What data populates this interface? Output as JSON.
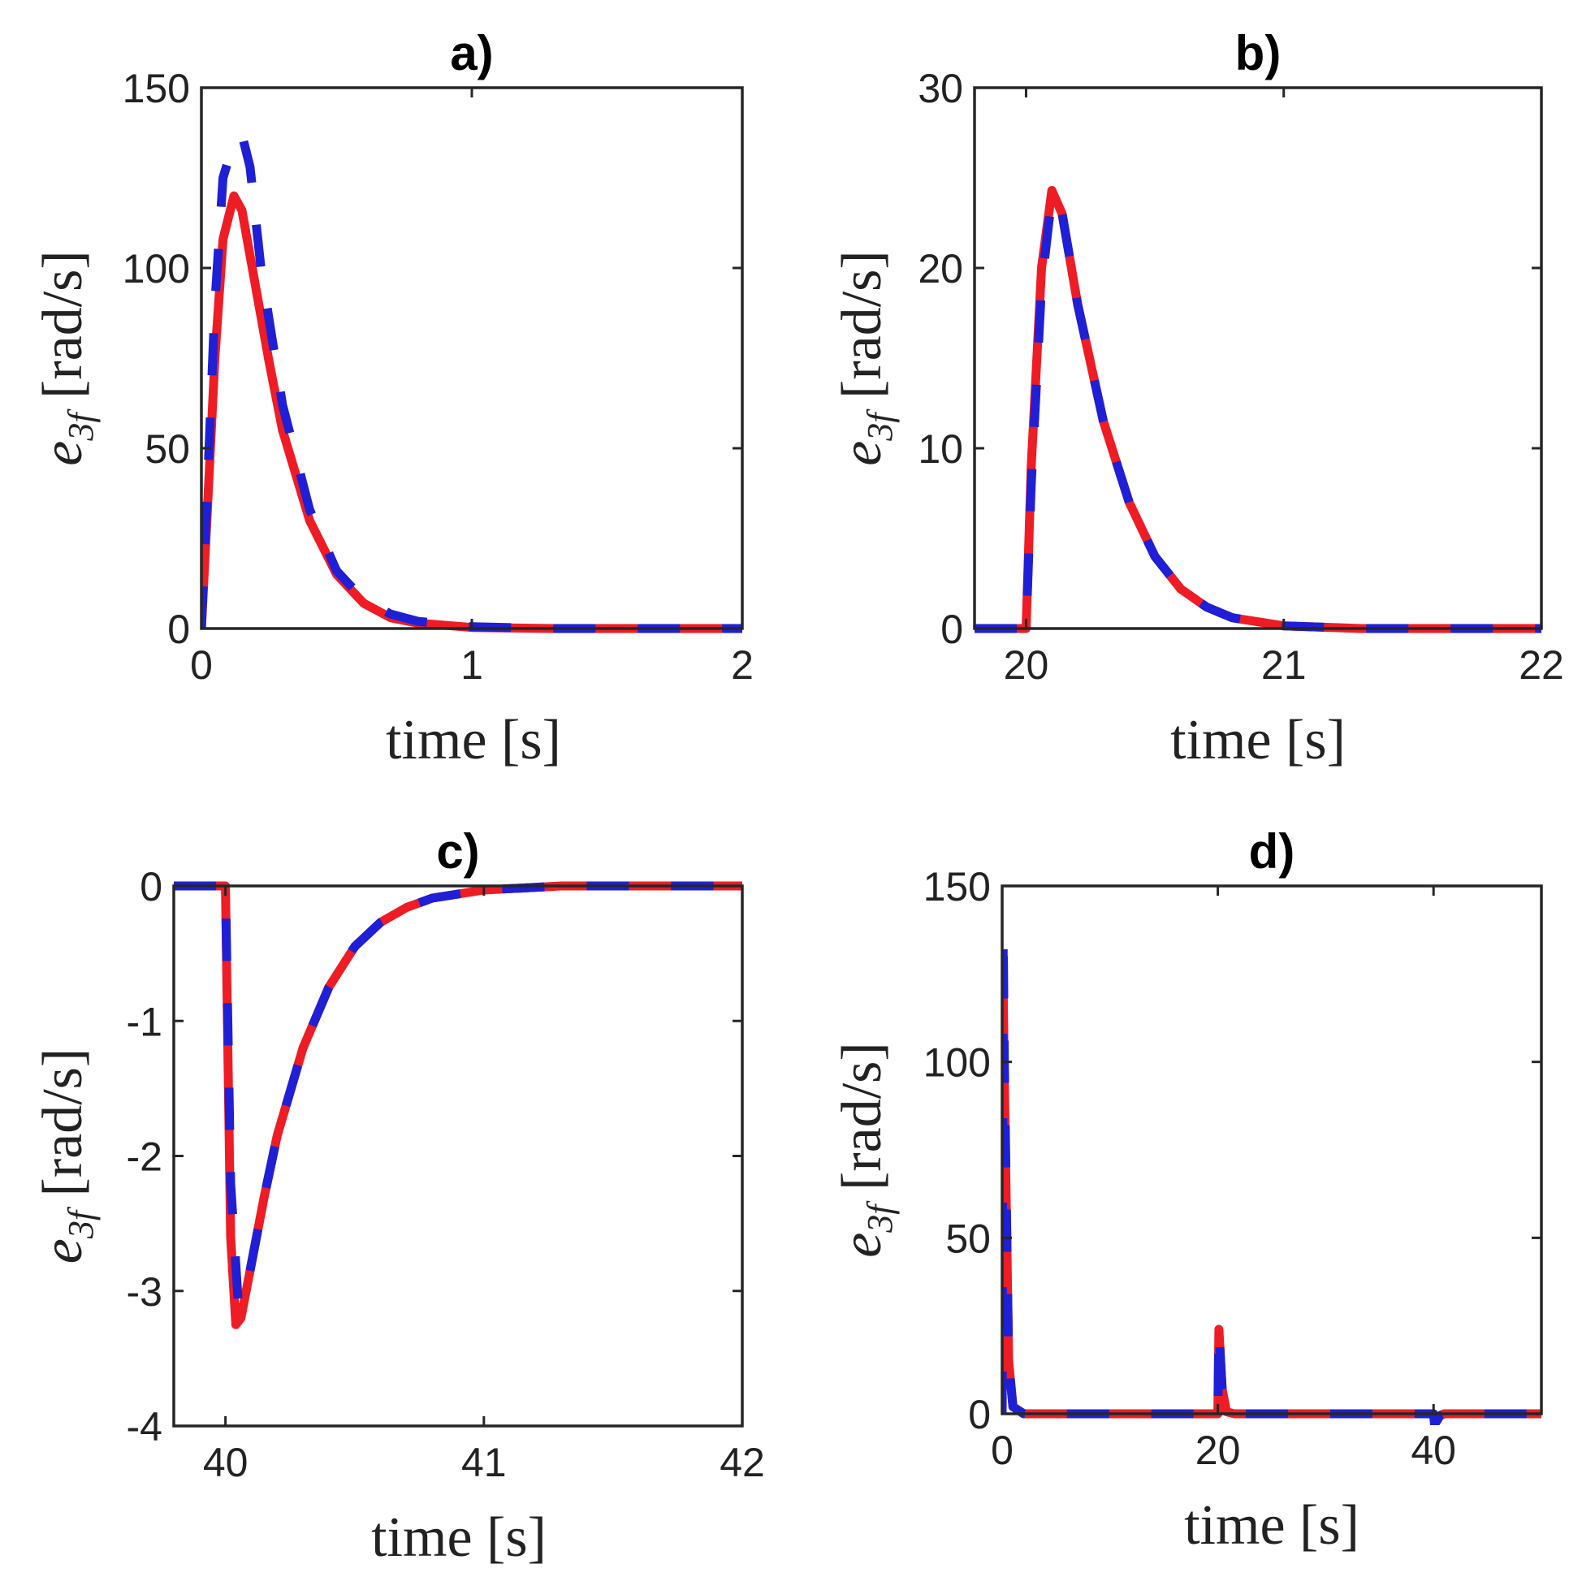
{
  "figure": {
    "background": "#ffffff",
    "series_colors": {
      "dashed": "#1f1fd6",
      "solid": "#ee1c25"
    }
  },
  "chart_data": [
    {
      "panel": "a)",
      "type": "line",
      "title": "a)",
      "xlabel": "time [s]",
      "ylabel": "e3f [rad/s]",
      "ylabel_parts": {
        "var": "e",
        "sub": "3f",
        "unit": " [rad/s]"
      },
      "xlim": [
        0,
        2
      ],
      "ylim": [
        0,
        150
      ],
      "xticks": [
        "0",
        "1",
        "2"
      ],
      "yticks": [
        "0",
        "50",
        "100",
        "150"
      ],
      "xtick_values": [
        0,
        1,
        2
      ],
      "ytick_values": [
        0,
        50,
        100,
        150
      ],
      "grid": false,
      "series": [
        {
          "name": "blue-dashed",
          "color": "#1f1fd6",
          "style": "dashed",
          "x": [
            0,
            0.02,
            0.05,
            0.08,
            0.12,
            0.15,
            0.18,
            0.22,
            0.3,
            0.4,
            0.5,
            0.6,
            0.7,
            0.8,
            1.0,
            1.3,
            1.6,
            2.0
          ],
          "y": [
            0,
            35,
            90,
            125,
            135,
            137,
            128,
            100,
            62,
            33,
            16,
            8,
            4,
            2,
            0.5,
            0,
            0,
            0
          ]
        },
        {
          "name": "red-solid",
          "color": "#ee1c25",
          "style": "solid",
          "x": [
            0,
            0.02,
            0.05,
            0.08,
            0.12,
            0.15,
            0.2,
            0.25,
            0.3,
            0.4,
            0.5,
            0.6,
            0.7,
            0.8,
            1.0,
            1.3,
            1.6,
            2.0
          ],
          "y": [
            0,
            30,
            75,
            108,
            120,
            116,
            95,
            74,
            55,
            30,
            15,
            7,
            3,
            1.5,
            0.3,
            0,
            0,
            0
          ]
        }
      ]
    },
    {
      "panel": "b)",
      "type": "line",
      "title": "b)",
      "xlabel": "time [s]",
      "ylabel": "e3f [rad/s]",
      "ylabel_parts": {
        "var": "e",
        "sub": "3f",
        "unit": " [rad/s]"
      },
      "xlim": [
        19.8,
        22
      ],
      "ylim": [
        0,
        30
      ],
      "xticks": [
        "20",
        "21",
        "22"
      ],
      "yticks": [
        "0",
        "10",
        "20",
        "30"
      ],
      "xtick_values": [
        20,
        21,
        22
      ],
      "ytick_values": [
        0,
        10,
        20,
        30
      ],
      "grid": false,
      "series": [
        {
          "name": "blue-dashed",
          "color": "#1f1fd6",
          "style": "dashed",
          "x": [
            19.8,
            20.0,
            20.02,
            20.06,
            20.1,
            20.14,
            20.2,
            20.3,
            20.4,
            20.5,
            20.6,
            20.7,
            20.8,
            21.0,
            21.3,
            21.6,
            22.0
          ],
          "y": [
            0,
            0,
            8,
            19,
            24,
            23,
            18,
            11.5,
            7,
            4,
            2.2,
            1.2,
            0.6,
            0.15,
            0,
            0,
            0
          ]
        },
        {
          "name": "red-solid",
          "color": "#ee1c25",
          "style": "solid",
          "x": [
            19.8,
            20.0,
            20.02,
            20.06,
            20.1,
            20.14,
            20.2,
            20.3,
            20.4,
            20.5,
            20.6,
            20.7,
            20.8,
            21.0,
            21.3,
            21.6,
            22.0
          ],
          "y": [
            0,
            0,
            9,
            20,
            24.3,
            23,
            18,
            11.5,
            7,
            4,
            2.2,
            1.2,
            0.6,
            0.15,
            0,
            0,
            0
          ]
        }
      ]
    },
    {
      "panel": "c)",
      "type": "line",
      "title": "c)",
      "xlabel": "time [s]",
      "ylabel": "e3f [rad/s]",
      "ylabel_parts": {
        "var": "e",
        "sub": "3f",
        "unit": " [rad/s]"
      },
      "xlim": [
        39.8,
        42
      ],
      "ylim": [
        -4,
        0
      ],
      "xticks": [
        "40",
        "41",
        "42"
      ],
      "yticks": [
        "-4",
        "-3",
        "-2",
        "-1",
        "0"
      ],
      "xtick_values": [
        40,
        41,
        42
      ],
      "ytick_values": [
        -4,
        -3,
        -2,
        -1,
        0
      ],
      "grid": false,
      "series": [
        {
          "name": "blue-dashed",
          "color": "#1f1fd6",
          "style": "dashed",
          "x": [
            39.8,
            40.0,
            40.02,
            40.05,
            40.08,
            40.1,
            40.15,
            40.2,
            40.3,
            40.4,
            40.5,
            40.6,
            40.7,
            40.8,
            41.0,
            41.3,
            42.0
          ],
          "y": [
            0,
            0,
            -2.2,
            -3.1,
            -3.0,
            -2.8,
            -2.3,
            -1.85,
            -1.2,
            -0.75,
            -0.45,
            -0.27,
            -0.16,
            -0.09,
            -0.03,
            0,
            0
          ]
        },
        {
          "name": "red-solid",
          "color": "#ee1c25",
          "style": "solid",
          "x": [
            39.8,
            40.0,
            40.02,
            40.04,
            40.06,
            40.1,
            40.15,
            40.2,
            40.3,
            40.4,
            40.5,
            40.6,
            40.7,
            40.8,
            41.0,
            41.3,
            42.0
          ],
          "y": [
            0,
            0,
            -2.6,
            -3.25,
            -3.2,
            -2.8,
            -2.3,
            -1.85,
            -1.2,
            -0.75,
            -0.45,
            -0.27,
            -0.16,
            -0.09,
            -0.03,
            0,
            0
          ]
        }
      ]
    },
    {
      "panel": "d)",
      "type": "line",
      "title": "d)",
      "xlabel": "time [s]",
      "ylabel": "e3f [rad/s]",
      "ylabel_parts": {
        "var": "e",
        "sub": "3f",
        "unit": " [rad/s]"
      },
      "xlim": [
        0,
        50
      ],
      "ylim": [
        0,
        150
      ],
      "xticks": [
        "0",
        "20",
        "40"
      ],
      "yticks": [
        "0",
        "50",
        "100",
        "150"
      ],
      "xtick_values": [
        0,
        20,
        40
      ],
      "ytick_values": [
        0,
        50,
        100,
        150
      ],
      "grid": false,
      "series": [
        {
          "name": "blue-dashed",
          "color": "#1f1fd6",
          "style": "dashed",
          "x": [
            0,
            0.1,
            0.2,
            0.6,
            1.0,
            2.0,
            19.9,
            20.0,
            20.1,
            20.4,
            20.8,
            21.5,
            39.9,
            40.0,
            40.1,
            40.6,
            41.0,
            50.0
          ],
          "y": [
            0,
            137,
            100,
            15,
            2,
            0,
            0,
            0,
            24,
            7,
            0.6,
            0,
            0,
            0,
            -3,
            -0.5,
            0,
            0
          ]
        },
        {
          "name": "red-solid",
          "color": "#ee1c25",
          "style": "solid",
          "x": [
            0,
            0.1,
            0.2,
            0.6,
            1.0,
            2.0,
            19.9,
            20.0,
            20.1,
            20.4,
            20.8,
            21.5,
            39.9,
            40.0,
            40.1,
            40.6,
            41.0,
            50.0
          ],
          "y": [
            0,
            120,
            95,
            15,
            2,
            0,
            0,
            0,
            24,
            7,
            0.6,
            0,
            0,
            0,
            -3,
            -0.5,
            0,
            0
          ]
        }
      ]
    }
  ]
}
